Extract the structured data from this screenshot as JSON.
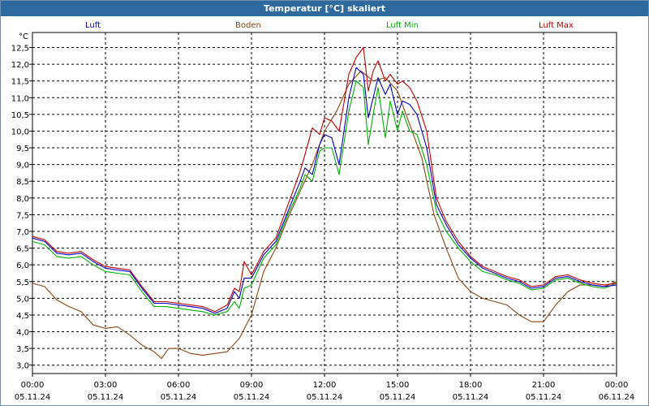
{
  "window": {
    "title": "Temperatur [°C] skaliert"
  },
  "colors": {
    "titlebar": "#2e6a9e",
    "luft": "#0000c8",
    "boden": "#8b4513",
    "luft_min": "#00b000",
    "luft_max": "#c00000"
  },
  "chart_data": {
    "type": "line",
    "title": "Temperatur [°C] skaliert",
    "ylabel": "°C",
    "xlabel": "",
    "ylim": [
      2.75,
      12.95
    ],
    "xlim": [
      0,
      24
    ],
    "grid": true,
    "legend": "top",
    "y_ticks": [
      "3,0",
      "3,5",
      "4,0",
      "4,5",
      "5,0",
      "5,5",
      "6,0",
      "6,5",
      "7,0",
      "7,5",
      "8,0",
      "8,5",
      "9,0",
      "9,5",
      "10,0",
      "10,5",
      "11,0",
      "11,5",
      "12,0",
      "12,5"
    ],
    "x_ticks": [
      {
        "time": "00:00",
        "date": "05.11.24"
      },
      {
        "time": "03:00",
        "date": "05.11.24"
      },
      {
        "time": "06:00",
        "date": "05.11.24"
      },
      {
        "time": "09:00",
        "date": "05.11.24"
      },
      {
        "time": "12:00",
        "date": "05.11.24"
      },
      {
        "time": "15:00",
        "date": "05.11.24"
      },
      {
        "time": "18:00",
        "date": "05.11.24"
      },
      {
        "time": "21:00",
        "date": "05.11.24"
      },
      {
        "time": "00:00",
        "date": "06.11.24"
      }
    ],
    "series": [
      {
        "name": "Luft",
        "color": "#0000c8",
        "points": [
          [
            0,
            6.8
          ],
          [
            0.5,
            6.7
          ],
          [
            1,
            6.35
          ],
          [
            1.5,
            6.3
          ],
          [
            2,
            6.35
          ],
          [
            2.5,
            6.1
          ],
          [
            3,
            5.9
          ],
          [
            3.5,
            5.85
          ],
          [
            4,
            5.8
          ],
          [
            4.5,
            5.3
          ],
          [
            5,
            4.85
          ],
          [
            5.5,
            4.85
          ],
          [
            6,
            4.8
          ],
          [
            6.5,
            4.75
          ],
          [
            7,
            4.7
          ],
          [
            7.5,
            4.55
          ],
          [
            8,
            4.7
          ],
          [
            8.3,
            5.2
          ],
          [
            8.5,
            5.0
          ],
          [
            8.7,
            5.6
          ],
          [
            9,
            5.6
          ],
          [
            9.5,
            6.3
          ],
          [
            10,
            6.7
          ],
          [
            10.5,
            7.6
          ],
          [
            11,
            8.5
          ],
          [
            11.2,
            8.9
          ],
          [
            11.5,
            8.7
          ],
          [
            11.8,
            9.6
          ],
          [
            12,
            9.9
          ],
          [
            12.3,
            9.8
          ],
          [
            12.6,
            9.0
          ],
          [
            13,
            11.0
          ],
          [
            13.3,
            11.9
          ],
          [
            13.6,
            11.7
          ],
          [
            13.8,
            10.4
          ],
          [
            14,
            11.0
          ],
          [
            14.2,
            11.6
          ],
          [
            14.5,
            11.1
          ],
          [
            14.7,
            11.4
          ],
          [
            15,
            10.5
          ],
          [
            15.2,
            10.9
          ],
          [
            15.5,
            10.8
          ],
          [
            15.8,
            10.5
          ],
          [
            16.2,
            9.5
          ],
          [
            16.6,
            7.8
          ],
          [
            17,
            7.2
          ],
          [
            17.5,
            6.6
          ],
          [
            18,
            6.2
          ],
          [
            18.5,
            5.9
          ],
          [
            19,
            5.75
          ],
          [
            19.5,
            5.6
          ],
          [
            20,
            5.5
          ],
          [
            20.5,
            5.3
          ],
          [
            21,
            5.35
          ],
          [
            21.5,
            5.6
          ],
          [
            22,
            5.65
          ],
          [
            22.5,
            5.5
          ],
          [
            23,
            5.4
          ],
          [
            23.5,
            5.35
          ],
          [
            24,
            5.4
          ]
        ]
      },
      {
        "name": "Boden",
        "color": "#8b4513",
        "points": [
          [
            0,
            5.45
          ],
          [
            0.5,
            5.35
          ],
          [
            1,
            4.95
          ],
          [
            1.5,
            4.75
          ],
          [
            2,
            4.6
          ],
          [
            2.5,
            4.2
          ],
          [
            3,
            4.1
          ],
          [
            3.5,
            4.15
          ],
          [
            4,
            3.9
          ],
          [
            4.5,
            3.6
          ],
          [
            5,
            3.4
          ],
          [
            5.3,
            3.2
          ],
          [
            5.6,
            3.5
          ],
          [
            6,
            3.5
          ],
          [
            6.5,
            3.35
          ],
          [
            7,
            3.3
          ],
          [
            7.5,
            3.35
          ],
          [
            8,
            3.4
          ],
          [
            8.5,
            3.8
          ],
          [
            9,
            4.5
          ],
          [
            9.5,
            5.8
          ],
          [
            10,
            6.5
          ],
          [
            10.5,
            7.4
          ],
          [
            11,
            8.2
          ],
          [
            11.5,
            9.0
          ],
          [
            12,
            10.0
          ],
          [
            12.5,
            10.6
          ],
          [
            13,
            11.4
          ],
          [
            13.5,
            11.8
          ],
          [
            14,
            11.5
          ],
          [
            14.5,
            11.6
          ],
          [
            15,
            11.2
          ],
          [
            15.5,
            10.2
          ],
          [
            16,
            9.2
          ],
          [
            16.5,
            7.5
          ],
          [
            17,
            6.5
          ],
          [
            17.5,
            5.6
          ],
          [
            18,
            5.2
          ],
          [
            18.5,
            5.0
          ],
          [
            19,
            4.9
          ],
          [
            19.5,
            4.8
          ],
          [
            20,
            4.5
          ],
          [
            20.5,
            4.3
          ],
          [
            21,
            4.3
          ],
          [
            21.5,
            4.8
          ],
          [
            22,
            5.2
          ],
          [
            22.5,
            5.4
          ],
          [
            23,
            5.4
          ],
          [
            23.5,
            5.35
          ],
          [
            24,
            5.5
          ]
        ]
      },
      {
        "name": "Luft Min",
        "color": "#00b000",
        "points": [
          [
            0,
            6.7
          ],
          [
            0.5,
            6.6
          ],
          [
            1,
            6.25
          ],
          [
            1.5,
            6.2
          ],
          [
            2,
            6.25
          ],
          [
            2.5,
            6.0
          ],
          [
            3,
            5.8
          ],
          [
            3.5,
            5.75
          ],
          [
            4,
            5.7
          ],
          [
            4.5,
            5.2
          ],
          [
            5,
            4.75
          ],
          [
            5.5,
            4.75
          ],
          [
            6,
            4.7
          ],
          [
            6.5,
            4.65
          ],
          [
            7,
            4.6
          ],
          [
            7.5,
            4.5
          ],
          [
            8,
            4.6
          ],
          [
            8.3,
            4.9
          ],
          [
            8.5,
            4.7
          ],
          [
            8.7,
            5.3
          ],
          [
            9,
            5.4
          ],
          [
            9.5,
            6.2
          ],
          [
            10,
            6.6
          ],
          [
            10.5,
            7.5
          ],
          [
            11,
            8.3
          ],
          [
            11.2,
            8.7
          ],
          [
            11.5,
            8.5
          ],
          [
            11.8,
            9.4
          ],
          [
            12,
            9.5
          ],
          [
            12.3,
            9.5
          ],
          [
            12.6,
            8.7
          ],
          [
            13,
            10.6
          ],
          [
            13.3,
            11.5
          ],
          [
            13.6,
            11.3
          ],
          [
            13.8,
            9.6
          ],
          [
            14,
            10.5
          ],
          [
            14.2,
            11.3
          ],
          [
            14.5,
            9.8
          ],
          [
            14.7,
            10.9
          ],
          [
            15,
            10.0
          ],
          [
            15.2,
            10.6
          ],
          [
            15.5,
            10.0
          ],
          [
            15.8,
            9.9
          ],
          [
            16.2,
            9.0
          ],
          [
            16.6,
            7.6
          ],
          [
            17,
            7.0
          ],
          [
            17.5,
            6.5
          ],
          [
            18,
            6.1
          ],
          [
            18.5,
            5.8
          ],
          [
            19,
            5.7
          ],
          [
            19.5,
            5.55
          ],
          [
            20,
            5.45
          ],
          [
            20.5,
            5.25
          ],
          [
            21,
            5.3
          ],
          [
            21.5,
            5.55
          ],
          [
            22,
            5.6
          ],
          [
            22.5,
            5.45
          ],
          [
            23,
            5.35
          ],
          [
            23.5,
            5.3
          ],
          [
            24,
            5.45
          ]
        ]
      },
      {
        "name": "Luft Max",
        "color": "#c00000",
        "points": [
          [
            0,
            6.85
          ],
          [
            0.5,
            6.75
          ],
          [
            1,
            6.4
          ],
          [
            1.5,
            6.35
          ],
          [
            2,
            6.4
          ],
          [
            2.5,
            6.15
          ],
          [
            3,
            5.95
          ],
          [
            3.5,
            5.9
          ],
          [
            4,
            5.85
          ],
          [
            4.5,
            5.35
          ],
          [
            5,
            4.9
          ],
          [
            5.5,
            4.9
          ],
          [
            6,
            4.85
          ],
          [
            6.5,
            4.8
          ],
          [
            7,
            4.75
          ],
          [
            7.5,
            4.6
          ],
          [
            8,
            4.8
          ],
          [
            8.3,
            5.3
          ],
          [
            8.5,
            5.2
          ],
          [
            8.7,
            6.1
          ],
          [
            9,
            5.7
          ],
          [
            9.5,
            6.4
          ],
          [
            10,
            6.8
          ],
          [
            10.5,
            7.8
          ],
          [
            11,
            8.8
          ],
          [
            11.2,
            9.3
          ],
          [
            11.5,
            10.1
          ],
          [
            11.8,
            9.9
          ],
          [
            12,
            10.4
          ],
          [
            12.3,
            10.3
          ],
          [
            12.6,
            10.0
          ],
          [
            13,
            11.7
          ],
          [
            13.3,
            12.2
          ],
          [
            13.6,
            12.5
          ],
          [
            13.8,
            11.2
          ],
          [
            14,
            11.8
          ],
          [
            14.2,
            12.1
          ],
          [
            14.5,
            11.5
          ],
          [
            14.7,
            11.7
          ],
          [
            15,
            11.4
          ],
          [
            15.2,
            11.5
          ],
          [
            15.5,
            11.3
          ],
          [
            15.8,
            10.9
          ],
          [
            16.2,
            10.0
          ],
          [
            16.6,
            8.0
          ],
          [
            17,
            7.3
          ],
          [
            17.5,
            6.7
          ],
          [
            18,
            6.25
          ],
          [
            18.5,
            5.95
          ],
          [
            19,
            5.8
          ],
          [
            19.5,
            5.65
          ],
          [
            20,
            5.55
          ],
          [
            20.5,
            5.35
          ],
          [
            21,
            5.4
          ],
          [
            21.5,
            5.65
          ],
          [
            22,
            5.7
          ],
          [
            22.5,
            5.55
          ],
          [
            23,
            5.45
          ],
          [
            23.5,
            5.4
          ],
          [
            24,
            5.45
          ]
        ]
      }
    ]
  }
}
